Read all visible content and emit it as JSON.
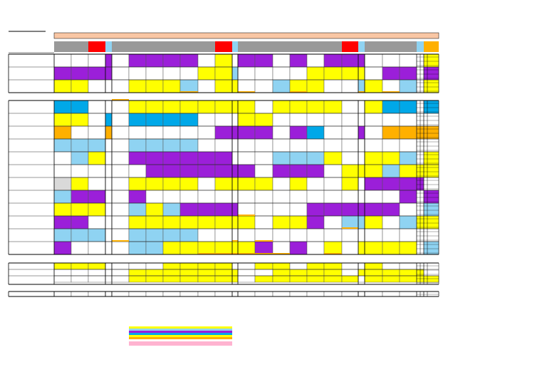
{
  "page": {
    "title": ""
  },
  "palette": {
    "p": "#9b1fd9",
    "y": "#ffff00",
    "l": "#8fd3f2",
    "b": "#00a8e8",
    "o": "#ffb000",
    "g": "#d9d9d9",
    "r": "#ff0000",
    "k": "#999999",
    "w": "#ffffff"
  },
  "header": {
    "banner_color": "#f9c6a4",
    "segments": [
      "k",
      "k",
      "r",
      "l",
      "k",
      "k",
      "k",
      "k",
      "k",
      "k",
      "r",
      "l",
      "k",
      "k",
      "k",
      "k",
      "k",
      "k",
      "r",
      "l",
      "k",
      "k",
      "k",
      "l",
      "o"
    ]
  },
  "sections": [
    {
      "rows": [
        "wwwpwppppwywppwpwpppwwwwyl",
        "ppppwwwwwyylwwwwyyyywppwpw",
        "yywwwyyylwyywwlyywwlywlwyw"
      ],
      "marks": [
        [
          3,
          8,
          "o"
        ],
        [
          3,
          12,
          "o"
        ],
        [
          3,
          15,
          "o"
        ],
        [
          3,
          19,
          "o"
        ],
        [
          3,
          21,
          "o"
        ]
      ]
    },
    {
      "rows": [
        "bbwwwyyyyyyyywyyyywwybbwbbb",
        "yywbwbbbbwwwyywwwwwwwwwwwww",
        "owwowwwwwwppppwpbwwpwooooooo",
        "lllwwllllwwwwwwwwwwwwwwwwww",
        "wlywwppppppwwwlllywwyylwyyy",
        "wwwwwwpppppppwpppwyyylyyyyy",
        "gywwwyyyywyyyywywwywppppwpp",
        "lppwwpwwwwwwwwwwwwwwwwpwppw",
        "yyywwlylppppwwwwppppppwwlpp",
        "ppwwwyyyyyyyywyypwllywlyyw",
        "lllwwllllwwwwwwwwwwwwwwwwww",
        "pwwwwllyyyyyypwpwywyyyywlllp"
      ],
      "marks": [
        [
          0,
          4,
          "o"
        ],
        [
          9,
          12,
          "o"
        ],
        [
          10,
          18,
          "o"
        ],
        [
          11,
          4,
          "o"
        ],
        [
          11,
          11,
          "o"
        ],
        [
          11,
          13,
          "o"
        ],
        [
          12,
          9,
          "o"
        ],
        [
          12,
          11,
          "o"
        ],
        [
          12,
          13,
          "o"
        ],
        [
          12,
          14,
          "o"
        ],
        [
          13,
          10,
          "o"
        ],
        [
          13,
          12,
          "o"
        ],
        [
          15,
          11,
          "o"
        ],
        [
          15,
          13,
          "o"
        ],
        [
          15,
          17,
          "o"
        ]
      ]
    },
    {
      "rows": [
        "yyywwwwyyyywwyywyywwywww",
        "wwwwwyyyyyyywwyyyywyyyyy",
        "wwwwwyyyyyyywyyyyyywyyyyy"
      ],
      "marks": []
    },
    {
      "rows": [
        "wwwwwwwwwwwwwwwwwwwwwwwwwww"
      ],
      "marks": []
    }
  ],
  "legend": {
    "swatches": [
      "y",
      "l",
      "p",
      "b",
      "y",
      "o",
      "w",
      "pk",
      "pk"
    ],
    "pink": "#ffb3d0"
  }
}
